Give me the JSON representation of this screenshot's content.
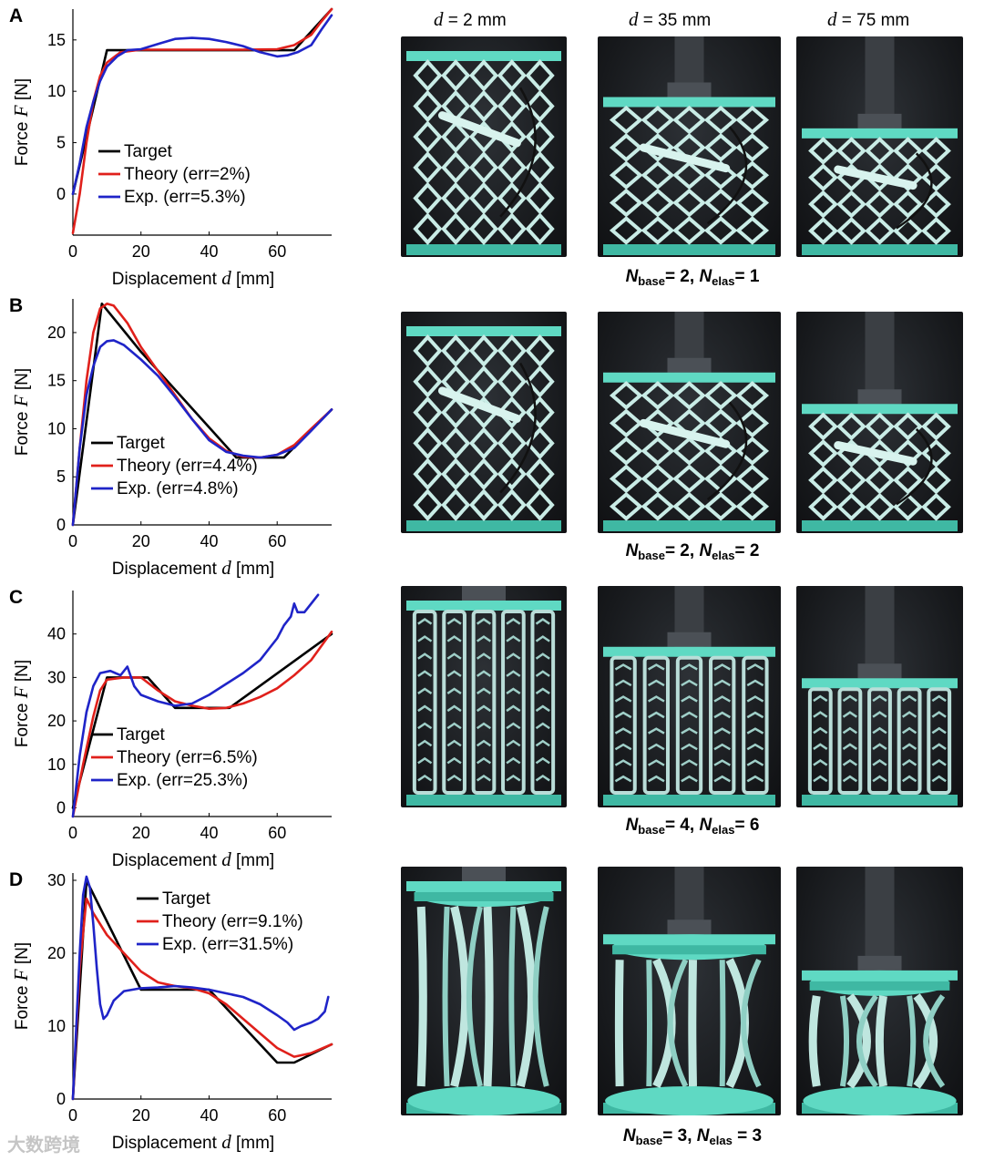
{
  "colors": {
    "target": "#000000",
    "theory": "#e0201b",
    "experiment": "#1f24c8",
    "specimen": "#5fd9c3",
    "specimen_shade": "#3fb8a3"
  },
  "column_headers": [
    {
      "var": "d",
      "text": " = 2 mm"
    },
    {
      "var": "d",
      "text": " = 35 mm"
    },
    {
      "var": "d",
      "text": " = 75 mm"
    }
  ],
  "watermark": "大数跨境",
  "chart_data": [
    {
      "panel": "A",
      "type": "line",
      "xlabel_text": "Displacement ",
      "xlabel_var": "d",
      "xlabel_unit": " [mm]",
      "ylabel_text": "Force ",
      "ylabel_var": "F",
      "ylabel_unit": " [N]",
      "xlim": [
        0,
        76
      ],
      "ylim": [
        -4,
        18
      ],
      "xticks": [
        0,
        20,
        40,
        60
      ],
      "yticks": [
        0,
        5,
        10,
        15
      ],
      "legend_placement": "center-left",
      "legend": [
        "Target",
        "Theory (err=2%)",
        "Exp. (err=5.3%)"
      ],
      "series": [
        {
          "name": "Target",
          "points": [
            [
              0,
              0
            ],
            [
              10,
              14
            ],
            [
              65,
              14
            ],
            [
              76,
              18
            ]
          ]
        },
        {
          "name": "Theory (err=2%)",
          "points": [
            [
              0,
              -3.8
            ],
            [
              2,
              0
            ],
            [
              4,
              5
            ],
            [
              6,
              9
            ],
            [
              8,
              11.5
            ],
            [
              10,
              12.8
            ],
            [
              14,
              13.8
            ],
            [
              20,
              14.05
            ],
            [
              30,
              14.05
            ],
            [
              40,
              14.05
            ],
            [
              50,
              14.05
            ],
            [
              60,
              14.1
            ],
            [
              65,
              14.5
            ],
            [
              70,
              15.5
            ],
            [
              73,
              16.8
            ],
            [
              76,
              18
            ]
          ]
        },
        {
          "name": "Exp. (err=5.3%)",
          "points": [
            [
              0,
              0
            ],
            [
              2,
              3
            ],
            [
              4,
              6.5
            ],
            [
              6,
              9
            ],
            [
              8,
              11
            ],
            [
              10,
              12.4
            ],
            [
              13,
              13.4
            ],
            [
              16,
              14
            ],
            [
              20,
              14.1
            ],
            [
              25,
              14.6
            ],
            [
              30,
              15.1
            ],
            [
              35,
              15.2
            ],
            [
              40,
              15.1
            ],
            [
              45,
              14.8
            ],
            [
              50,
              14.4
            ],
            [
              55,
              13.8
            ],
            [
              60,
              13.4
            ],
            [
              63,
              13.5
            ],
            [
              66,
              13.8
            ],
            [
              70,
              14.5
            ],
            [
              73,
              16
            ],
            [
              76,
              17.4
            ]
          ]
        }
      ]
    },
    {
      "panel": "B",
      "type": "line",
      "xlabel_text": "Displacement ",
      "xlabel_var": "d",
      "xlabel_unit": " [mm]",
      "ylabel_text": "Force ",
      "ylabel_var": "F",
      "ylabel_unit": " [N]",
      "xlim": [
        0,
        76
      ],
      "ylim": [
        0,
        23.5
      ],
      "xticks": [
        0,
        20,
        40,
        60
      ],
      "yticks": [
        0,
        5,
        10,
        15,
        20
      ],
      "legend_placement": "bottom-left",
      "legend": [
        "Target",
        "Theory (err=4.4%)",
        "Exp. (err=4.8%)"
      ],
      "series": [
        {
          "name": "Target",
          "points": [
            [
              0,
              0
            ],
            [
              8.5,
              23
            ],
            [
              20,
              18
            ],
            [
              48,
              7
            ],
            [
              62,
              7
            ],
            [
              76,
              12
            ]
          ]
        },
        {
          "name": "Theory (err=4.4%)",
          "points": [
            [
              0,
              0
            ],
            [
              2,
              8
            ],
            [
              4,
              15
            ],
            [
              6,
              20
            ],
            [
              8,
              22.5
            ],
            [
              10,
              23
            ],
            [
              12,
              22.8
            ],
            [
              16,
              21
            ],
            [
              20,
              18.5
            ],
            [
              25,
              16
            ],
            [
              30,
              13.5
            ],
            [
              35,
              11
            ],
            [
              40,
              9
            ],
            [
              45,
              7.7
            ],
            [
              50,
              7.1
            ],
            [
              55,
              7
            ],
            [
              60,
              7.3
            ],
            [
              65,
              8.3
            ],
            [
              70,
              10
            ],
            [
              76,
              12
            ]
          ]
        },
        {
          "name": "Exp. (err=4.8%)",
          "points": [
            [
              0,
              0
            ],
            [
              2,
              8
            ],
            [
              4,
              13.5
            ],
            [
              6,
              16.5
            ],
            [
              8,
              18.5
            ],
            [
              10,
              19.1
            ],
            [
              12,
              19.2
            ],
            [
              15,
              18.7
            ],
            [
              20,
              17.2
            ],
            [
              25,
              15.5
            ],
            [
              30,
              13.3
            ],
            [
              35,
              11
            ],
            [
              40,
              8.8
            ],
            [
              45,
              7.6
            ],
            [
              50,
              7.2
            ],
            [
              55,
              7
            ],
            [
              60,
              7.3
            ],
            [
              65,
              8
            ],
            [
              70,
              9.8
            ],
            [
              76,
              12
            ]
          ]
        }
      ]
    },
    {
      "panel": "C",
      "type": "line",
      "xlabel_text": "Displacement ",
      "xlabel_var": "d",
      "xlabel_unit": " [mm]",
      "ylabel_text": "Force ",
      "ylabel_var": "F",
      "ylabel_unit": " [N]",
      "xlim": [
        0,
        76
      ],
      "ylim": [
        -2,
        50
      ],
      "xticks": [
        0,
        20,
        40,
        60
      ],
      "yticks": [
        0,
        10,
        20,
        30,
        40
      ],
      "legend_placement": "bottom-left",
      "legend": [
        "Target",
        "Theory (err=6.5%)",
        "Exp. (err=25.3%)"
      ],
      "series": [
        {
          "name": "Target",
          "points": [
            [
              0,
              0
            ],
            [
              10,
              30
            ],
            [
              22,
              30
            ],
            [
              30,
              23
            ],
            [
              46,
              23
            ],
            [
              76,
              40
            ]
          ]
        },
        {
          "name": "Theory (err=6.5%)",
          "points": [
            [
              0,
              -2
            ],
            [
              3,
              10
            ],
            [
              6,
              21
            ],
            [
              8,
              27
            ],
            [
              10,
              29.5
            ],
            [
              15,
              30
            ],
            [
              20,
              30
            ],
            [
              25,
              27
            ],
            [
              30,
              24.5
            ],
            [
              35,
              23.5
            ],
            [
              40,
              22.8
            ],
            [
              45,
              23
            ],
            [
              50,
              24
            ],
            [
              55,
              25.5
            ],
            [
              60,
              27.5
            ],
            [
              65,
              30.5
            ],
            [
              70,
              34
            ],
            [
              76,
              40.5
            ]
          ]
        },
        {
          "name": "Exp. (err=25.3%)",
          "points": [
            [
              0,
              -2
            ],
            [
              2,
              12
            ],
            [
              4,
              22
            ],
            [
              6,
              28
            ],
            [
              8,
              31
            ],
            [
              11,
              31.5
            ],
            [
              14,
              30.5
            ],
            [
              16,
              32.5
            ],
            [
              18,
              28
            ],
            [
              20,
              26
            ],
            [
              25,
              24.5
            ],
            [
              30,
              23.5
            ],
            [
              35,
              24
            ],
            [
              40,
              26
            ],
            [
              45,
              28.5
            ],
            [
              50,
              31
            ],
            [
              55,
              34
            ],
            [
              58,
              37
            ],
            [
              60,
              39
            ],
            [
              62,
              42
            ],
            [
              64,
              44
            ],
            [
              65,
              47
            ],
            [
              66,
              45
            ],
            [
              68,
              45
            ],
            [
              70,
              47
            ],
            [
              72,
              49
            ]
          ]
        }
      ]
    },
    {
      "panel": "D",
      "type": "line",
      "xlabel_text": "Displacement ",
      "xlabel_var": "d",
      "xlabel_unit": " [mm]",
      "ylabel_text": "Force ",
      "ylabel_var": "F",
      "ylabel_unit": " [N]",
      "xlim": [
        0,
        76
      ],
      "ylim": [
        0,
        31
      ],
      "xticks": [
        0,
        20,
        40,
        60
      ],
      "yticks": [
        0,
        10,
        20,
        30
      ],
      "legend_placement": "top-right",
      "legend": [
        "Target",
        "Theory (err=9.1%)",
        "Exp. (err=31.5%)"
      ],
      "series": [
        {
          "name": "Target",
          "points": [
            [
              0,
              0
            ],
            [
              4,
              30
            ],
            [
              20,
              15
            ],
            [
              40,
              15
            ],
            [
              60,
              5
            ],
            [
              65,
              5
            ],
            [
              76,
              7.5
            ]
          ]
        },
        {
          "name": "Theory (err=9.1%)",
          "points": [
            [
              0,
              0
            ],
            [
              2,
              18
            ],
            [
              4,
              27.5
            ],
            [
              6,
              25.5
            ],
            [
              8,
              24
            ],
            [
              10,
              22.5
            ],
            [
              13,
              21
            ],
            [
              16,
              19.5
            ],
            [
              20,
              17.5
            ],
            [
              25,
              16
            ],
            [
              30,
              15.5
            ],
            [
              35,
              15.2
            ],
            [
              40,
              14.5
            ],
            [
              45,
              13
            ],
            [
              50,
              11
            ],
            [
              55,
              9
            ],
            [
              60,
              7
            ],
            [
              65,
              5.8
            ],
            [
              70,
              6.3
            ],
            [
              76,
              7.5
            ]
          ]
        },
        {
          "name": "Exp. (err=31.5%)",
          "points": [
            [
              0,
              0
            ],
            [
              2,
              20
            ],
            [
              3,
              28
            ],
            [
              4,
              30.5
            ],
            [
              5,
              29
            ],
            [
              6,
              24
            ],
            [
              7,
              18
            ],
            [
              8,
              13
            ],
            [
              9,
              11
            ],
            [
              10,
              11.5
            ],
            [
              12,
              13.5
            ],
            [
              15,
              14.8
            ],
            [
              20,
              15.2
            ],
            [
              25,
              15.3
            ],
            [
              30,
              15.5
            ],
            [
              35,
              15.3
            ],
            [
              40,
              15
            ],
            [
              45,
              14.5
            ],
            [
              50,
              14
            ],
            [
              55,
              13
            ],
            [
              60,
              11.5
            ],
            [
              63,
              10.5
            ],
            [
              65,
              9.5
            ],
            [
              67,
              10
            ],
            [
              70,
              10.5
            ],
            [
              72,
              11
            ],
            [
              74,
              12
            ],
            [
              75,
              14
            ]
          ]
        }
      ]
    }
  ],
  "captions": [
    {
      "n1": "N",
      "sub1": "base",
      "mid": "= 2, ",
      "n2": "N",
      "sub2": "elas",
      "end": "= 1"
    },
    {
      "n1": "N",
      "sub1": "base",
      "mid": "= 2, ",
      "n2": "N",
      "sub2": "elas",
      "end": "= 2"
    },
    {
      "n1": "N",
      "sub1": "base",
      "mid": "= 4, ",
      "n2": "N",
      "sub2": "elas",
      "end": "= 6"
    },
    {
      "n1": "N",
      "sub1": "base",
      "mid": "= 3, ",
      "n2": "N",
      "sub2": "elas",
      "end": " = 3"
    }
  ]
}
